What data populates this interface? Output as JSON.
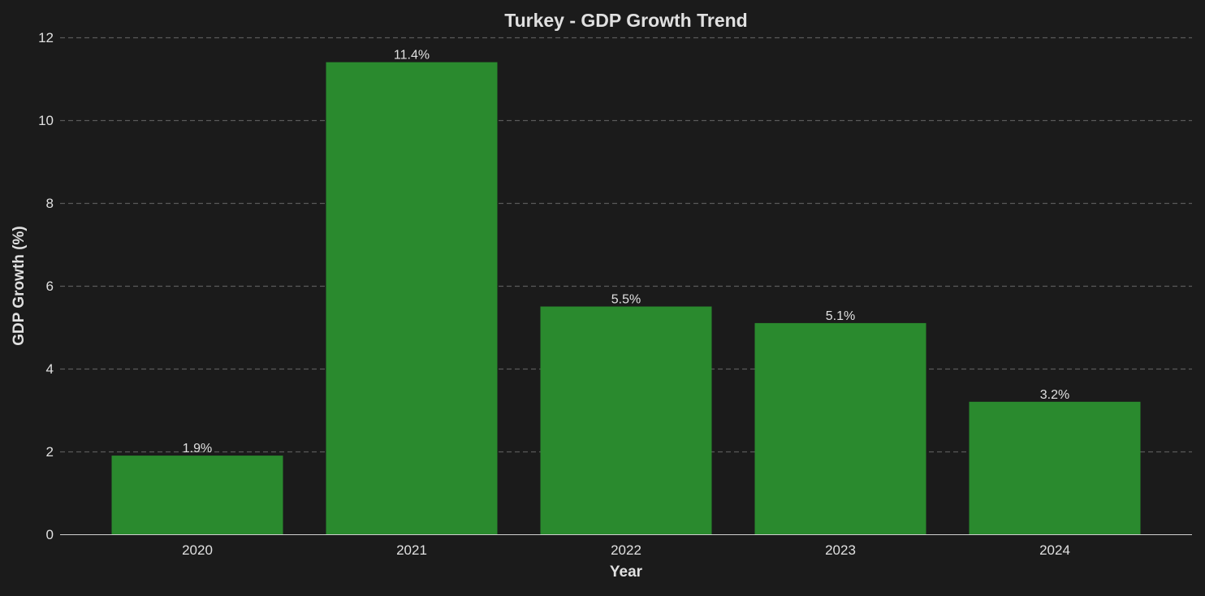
{
  "chart_data": {
    "type": "bar",
    "title": "Turkey - GDP Growth Trend",
    "xlabel": "Year",
    "ylabel": "GDP Growth (%)",
    "categories": [
      "2020",
      "2021",
      "2022",
      "2023",
      "2024"
    ],
    "values": [
      1.9,
      11.4,
      5.5,
      5.1,
      3.2
    ],
    "data_labels": [
      "1.9%",
      "11.4%",
      "5.5%",
      "5.1%",
      "3.2%"
    ],
    "ylim": [
      0,
      12
    ],
    "yticks": [
      "0",
      "2",
      "4",
      "6",
      "8",
      "10",
      "12"
    ],
    "grid": "horizontal dashed",
    "legend": "none",
    "colors": {
      "bar": "#2a8a2e",
      "background": "#1b1b1b",
      "grid": "#5a5a5a",
      "text": "#e0e0e0"
    }
  }
}
